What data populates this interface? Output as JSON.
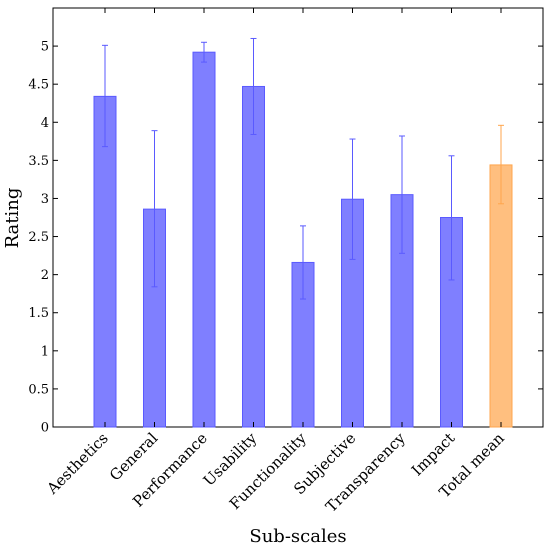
{
  "chart_data": {
    "type": "bar",
    "xlabel": "Sub-scales",
    "ylabel": "Rating",
    "ylim": [
      0,
      5.5
    ],
    "yticks": [
      0,
      0.5,
      1,
      1.5,
      2,
      2.5,
      3,
      3.5,
      4,
      4.5,
      5
    ],
    "ytick_labels": [
      "0",
      "0.5",
      "1",
      "1.5",
      "2",
      "2.5",
      "3",
      "3.5",
      "4",
      "4.5",
      "5"
    ],
    "categories": [
      "Aesthetics",
      "General",
      "Performance",
      "Usability",
      "Functionality",
      "Subjective",
      "Transparency",
      "Impact",
      "Total mean"
    ],
    "values": [
      4.34,
      2.86,
      4.92,
      4.47,
      2.16,
      2.99,
      3.05,
      2.75,
      3.44
    ],
    "error_low": [
      3.68,
      1.84,
      4.79,
      3.84,
      1.68,
      2.2,
      2.28,
      1.93,
      2.93
    ],
    "error_high": [
      5.01,
      3.89,
      5.05,
      5.1,
      2.64,
      3.78,
      3.82,
      3.56,
      3.96
    ],
    "colors": [
      "#7f7fff",
      "#7f7fff",
      "#7f7fff",
      "#7f7fff",
      "#7f7fff",
      "#7f7fff",
      "#7f7fff",
      "#7f7fff",
      "#ffbf7f"
    ],
    "edge_colors": [
      "#5a5aff",
      "#5a5aff",
      "#5a5aff",
      "#5a5aff",
      "#5a5aff",
      "#5a5aff",
      "#5a5aff",
      "#5a5aff",
      "#ffa64d"
    ],
    "grid": false,
    "legend": "none"
  }
}
